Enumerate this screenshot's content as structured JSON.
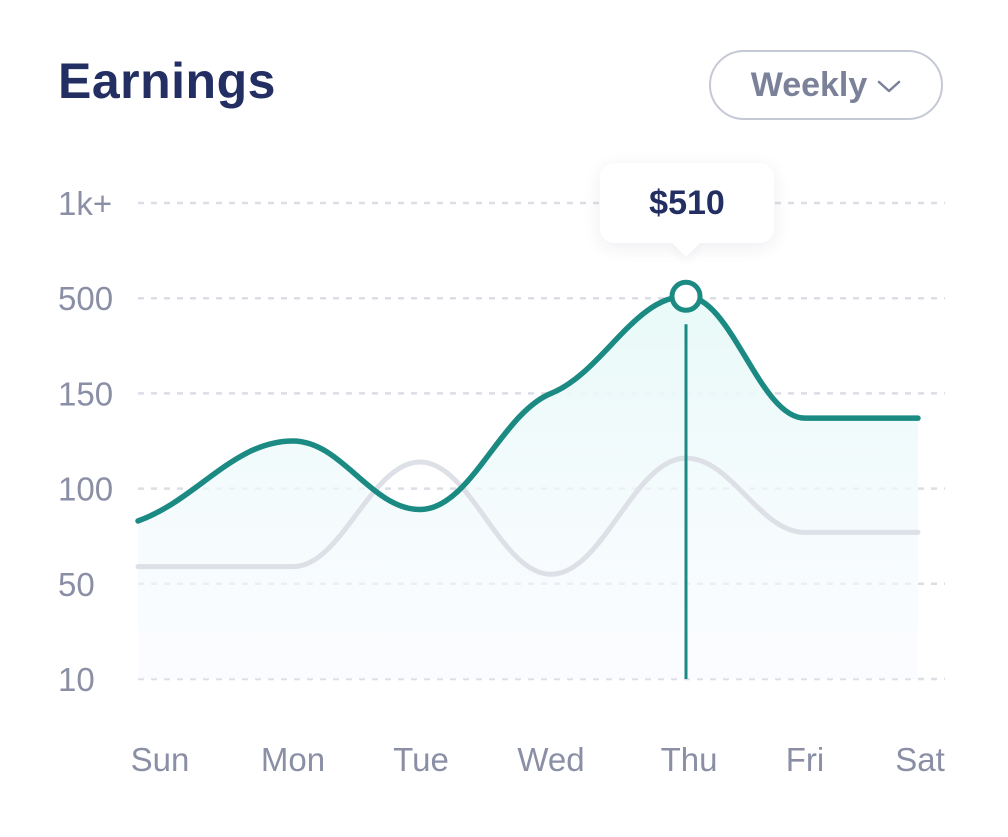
{
  "header": {
    "title": "Earnings"
  },
  "period_select": {
    "value": "Weekly",
    "icon": "chevron-down-icon"
  },
  "tooltip": {
    "label": "$510",
    "category": "Thu"
  },
  "colors": {
    "primary": "#1a8a83",
    "secondary": "#dde0e6",
    "title": "#232f63",
    "axis": "#8a8fa6",
    "fill": "#eafaf9"
  },
  "chart_data": {
    "type": "line",
    "title": "Earnings",
    "categories": [
      "Sun",
      "Mon",
      "Tue",
      "Wed",
      "Thu",
      "Fri",
      "Sat"
    ],
    "y_ticks": [
      "10",
      "50",
      "100",
      "150",
      "500",
      "1k+"
    ],
    "y_tick_values": [
      10,
      50,
      100,
      150,
      500,
      1000
    ],
    "y_scale": "ordinal (non-linear, evenly spaced ticks)",
    "grid": "horizontal dashed",
    "series": [
      {
        "values": [
          83,
          125,
          89,
          150,
          510,
          137,
          137
        ],
        "color": "#1a8a83",
        "area_fill": true
      },
      {
        "values": [
          59,
          59,
          114,
          55,
          116,
          77,
          77
        ],
        "color": "#dde0e6"
      }
    ],
    "highlight": {
      "category": "Thu",
      "value": 510
    }
  }
}
